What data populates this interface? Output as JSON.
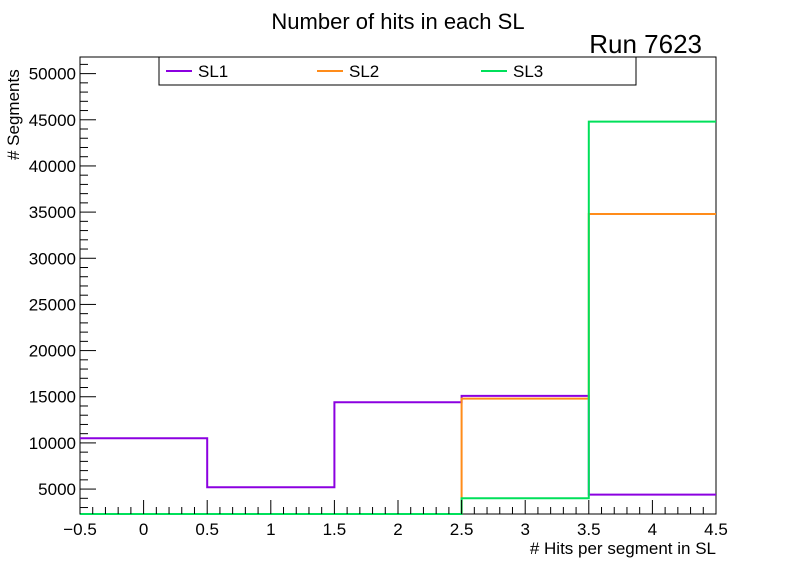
{
  "chart_data": {
    "type": "step-histogram",
    "title": "Number of hits in each SL",
    "annotation": "Run 7623",
    "xlabel": "# Hits per segment in SL",
    "ylabel": "# Segments",
    "xlim": [
      -0.5,
      4.5
    ],
    "ylim": [
      2300,
      51800
    ],
    "x_ticks": [
      -0.5,
      0,
      0.5,
      1,
      1.5,
      2,
      2.5,
      3,
      3.5,
      4,
      4.5
    ],
    "x_tick_labels": [
      "−0.5",
      "0",
      "0.5",
      "1",
      "1.5",
      "2",
      "2.5",
      "3",
      "3.5",
      "4",
      "4.5"
    ],
    "y_ticks": [
      5000,
      10000,
      15000,
      20000,
      25000,
      30000,
      35000,
      40000,
      45000,
      50000
    ],
    "y_tick_labels": [
      "5000",
      "10000",
      "15000",
      "20000",
      "25000",
      "30000",
      "35000",
      "40000",
      "45000",
      "50000"
    ],
    "bin_edges": [
      -0.5,
      0.5,
      1.5,
      2.5,
      3.5,
      4.5
    ],
    "series": [
      {
        "name": "SL1",
        "color": "#8b00e0",
        "values": [
          10500,
          5200,
          14400,
          15100,
          4400
        ]
      },
      {
        "name": "SL2",
        "color": "#ff8c1a",
        "values": [
          0,
          0,
          0,
          14800,
          34800
        ]
      },
      {
        "name": "SL3",
        "color": "#00e05a",
        "values": [
          0,
          0,
          0,
          4000,
          44800
        ]
      }
    ],
    "grid": false,
    "legend_position": "top"
  }
}
